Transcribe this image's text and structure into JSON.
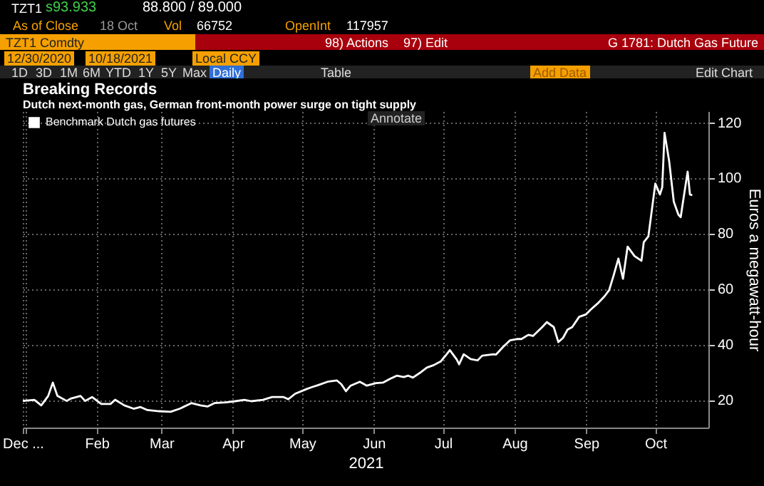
{
  "chart_data": {
    "type": "line",
    "title": "Breaking Records",
    "subtitle": "Dutch next-month gas, German front-month power surge on tight supply",
    "xlabel": "2021",
    "ylabel": "Euros a megawatt-hour",
    "annotations": [
      "TZT1",
      "s93.933",
      "88.800 / 89.000",
      "As of Close",
      "18 Oct",
      "Vol",
      "66752",
      "OpenInt",
      "117957",
      "TZT1 Comdty",
      "98) Actions",
      "97) Edit",
      "G 1781: Dutch Gas Future",
      "12/30/2020",
      "10/18/2021",
      "Local CCY",
      "1D",
      "3D",
      "1M",
      "6M",
      "YTD",
      "1Y",
      "5Y",
      "Max",
      "Daily",
      "Table",
      "Add Data",
      "Edit Chart",
      "Annotate"
    ],
    "x": [
      "2020-12-31",
      "2021-01-05",
      "2021-01-08",
      "2021-01-11",
      "2021-01-13",
      "2021-01-15",
      "2021-01-19",
      "2021-01-21",
      "2021-01-25",
      "2021-01-27",
      "2021-01-30",
      "2021-02-03",
      "2021-02-07",
      "2021-02-09",
      "2021-02-13",
      "2021-02-17",
      "2021-02-20",
      "2021-02-23",
      "2021-02-28",
      "2021-03-05",
      "2021-03-09",
      "2021-03-14",
      "2021-03-18",
      "2021-03-21",
      "2021-03-24",
      "2021-03-29",
      "2021-04-02",
      "2021-04-06",
      "2021-04-09",
      "2021-04-14",
      "2021-04-18",
      "2021-04-23",
      "2021-04-25",
      "2021-04-28",
      "2021-05-03",
      "2021-05-05",
      "2021-05-08",
      "2021-05-12",
      "2021-05-16",
      "2021-05-18",
      "2021-05-20",
      "2021-05-22",
      "2021-05-26",
      "2021-05-29",
      "2021-06-02",
      "2021-06-05",
      "2021-06-08",
      "2021-06-11",
      "2021-06-14",
      "2021-06-16",
      "2021-06-18",
      "2021-06-21",
      "2021-06-24",
      "2021-06-27",
      "2021-06-30",
      "2021-07-02",
      "2021-07-04",
      "2021-07-07",
      "2021-07-08",
      "2021-07-10",
      "2021-07-13",
      "2021-07-16",
      "2021-07-18",
      "2021-07-23",
      "2021-07-24",
      "2021-07-27",
      "2021-07-30",
      "2021-08-02",
      "2021-08-04",
      "2021-08-07",
      "2021-08-09",
      "2021-08-13",
      "2021-08-15",
      "2021-08-18",
      "2021-08-20",
      "2021-08-22",
      "2021-08-24",
      "2021-08-26",
      "2021-08-29",
      "2021-09-01",
      "2021-09-03",
      "2021-09-06",
      "2021-09-09",
      "2021-09-11",
      "2021-09-13",
      "2021-09-15",
      "2021-09-17",
      "2021-09-19",
      "2021-09-22",
      "2021-09-25",
      "2021-09-26",
      "2021-09-28",
      "2021-10-01",
      "2021-10-03",
      "2021-10-04",
      "2021-10-05",
      "2021-10-07",
      "2021-10-09",
      "2021-10-11",
      "2021-10-12",
      "2021-10-13",
      "2021-10-15",
      "2021-10-16",
      "2021-10-17"
    ],
    "series": [
      {
        "name": "Benchmark Dutch gas futures",
        "color": "#ffffff",
        "values": [
          19.6,
          20,
          18,
          21.4,
          26.2,
          21.4,
          19.6,
          20.5,
          21.4,
          19.6,
          21,
          18.5,
          18.5,
          20,
          18,
          16.8,
          17.4,
          16.3,
          15.9,
          15.7,
          16.8,
          18.8,
          18,
          17.6,
          18.8,
          19.1,
          19.5,
          20,
          19.5,
          20,
          21,
          21,
          20.2,
          22.2,
          23.9,
          24.5,
          25.3,
          26.5,
          27,
          25.6,
          23.1,
          25.1,
          26.5,
          25.1,
          26,
          26.2,
          27.5,
          28.7,
          28.2,
          28.7,
          28,
          29.7,
          31.6,
          32.5,
          33.8,
          35.8,
          37.9,
          34.5,
          32.8,
          36.4,
          34.7,
          34.2,
          35.9,
          36.4,
          36.3,
          39,
          41.4,
          41.9,
          41.9,
          43.4,
          43,
          46.2,
          48,
          46.2,
          40.8,
          42.3,
          45.3,
          46.2,
          49.9,
          50.8,
          52.5,
          54.7,
          57.3,
          59.5,
          65,
          70.9,
          63.6,
          75.2,
          71.8,
          70.1,
          76.8,
          78.9,
          97.9,
          94,
          96.6,
          116.2,
          106,
          91.4,
          86.7,
          85.8,
          91.4,
          102.2,
          94,
          93.7
        ]
      }
    ],
    "xlim": [
      "2020-12-31",
      "2021-10-24"
    ],
    "xticks": [
      {
        "value": "2020-12-31",
        "label": "Dec ..."
      },
      {
        "value": "2021-01-01",
        "label": null
      },
      {
        "value": "2021-02-01",
        "label": "Feb"
      },
      {
        "value": "2021-03-01",
        "label": "Mar"
      },
      {
        "value": "2021-04-01",
        "label": "Apr"
      },
      {
        "value": "2021-05-01",
        "label": "May"
      },
      {
        "value": "2021-06-01",
        "label": "Jun"
      },
      {
        "value": "2021-07-01",
        "label": "Jul"
      },
      {
        "value": "2021-08-01",
        "label": "Aug"
      },
      {
        "value": "2021-09-01",
        "label": "Sep"
      },
      {
        "value": "2021-10-01",
        "label": "Oct"
      }
    ],
    "ylim": [
      10,
      124
    ],
    "yticks": [
      20,
      40,
      60,
      80,
      100,
      120
    ],
    "grid": true,
    "legend": "top left",
    "marker": "none",
    "line_style": "solid"
  }
}
